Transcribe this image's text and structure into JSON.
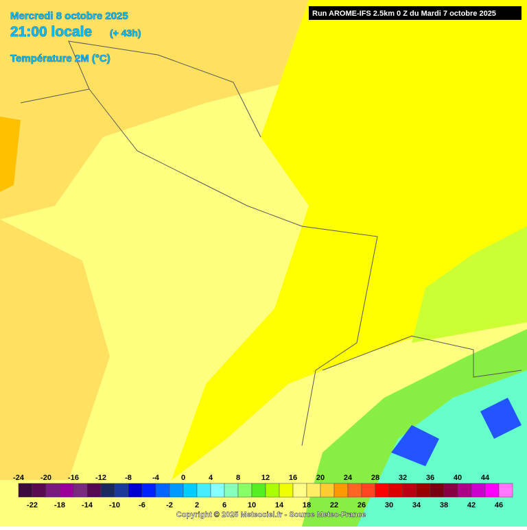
{
  "header": {
    "date": "Mercredi 8 octobre 2025",
    "time": "21:00 locale",
    "offset": "(+ 43h)",
    "parameter": "Température 2M (°C)",
    "run": "Run AROME-IFS 2.5km 0 Z du Mardi 7 octobre 2025"
  },
  "legend": {
    "values": [
      -24,
      -22,
      -20,
      -18,
      -16,
      -14,
      -12,
      -10,
      -8,
      -6,
      -4,
      -2,
      0,
      2,
      4,
      6,
      8,
      10,
      12,
      14,
      16,
      18,
      20,
      22,
      24,
      26,
      28,
      30,
      32,
      34,
      36,
      38,
      40,
      42,
      44,
      46
    ],
    "colors": [
      "#3c0a3c",
      "#5a0a50",
      "#7a1a7a",
      "#990099",
      "#7a2a7a",
      "#550a50",
      "#1a2a5a",
      "#1a3a9a",
      "#0000cc",
      "#0022ff",
      "#0066ff",
      "#0099ff",
      "#00ccff",
      "#44eeff",
      "#88ffff",
      "#88ffbb",
      "#88ff66",
      "#55ee22",
      "#aaff00",
      "#eeff00",
      "#ffff88",
      "#ffee66",
      "#ffcc33",
      "#ff9900",
      "#ff6622",
      "#ff4422",
      "#ff0000",
      "#dd0000",
      "#bb0011",
      "#990000",
      "#770011",
      "#880044",
      "#aa0088",
      "#cc00cc",
      "#ff00ff",
      "#ff77ff"
    ]
  },
  "footer": {
    "copyright": "Copyright © 2025 Meteociel.fr - Source Meteo-France"
  }
}
